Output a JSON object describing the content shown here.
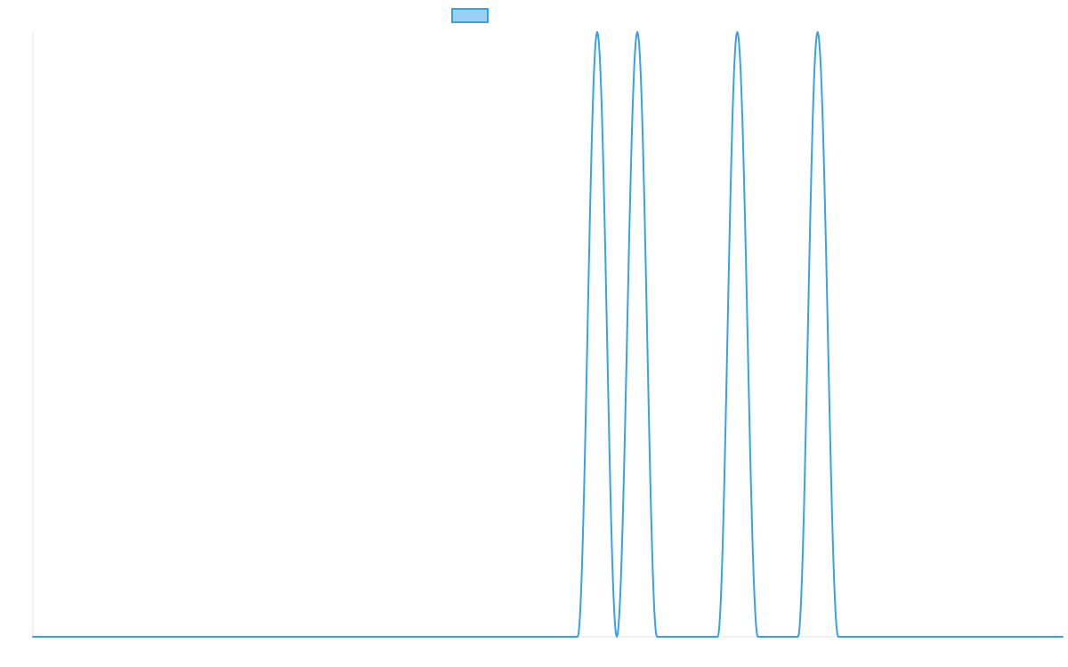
{
  "chart_data": {
    "type": "line",
    "title": "",
    "xlabel": "",
    "ylabel": "",
    "grid": false,
    "legend_placement": "top-center",
    "colors": {
      "line": "#36a2eb",
      "legend_fill": "#9ad0f5",
      "axis": "#e6e6e6"
    },
    "xlim": [
      0,
      1000
    ],
    "ylim": [
      0,
      1
    ],
    "series": [
      {
        "values_x": [
          0,
          529,
          548,
          567,
          587,
          606,
          626,
          665,
          684,
          704,
          723,
          743,
          762,
          782,
          1000
        ],
        "values_y": [
          0,
          0,
          1,
          0,
          1,
          0,
          0,
          0,
          1,
          0,
          0,
          0,
          1,
          0,
          0
        ]
      }
    ]
  }
}
